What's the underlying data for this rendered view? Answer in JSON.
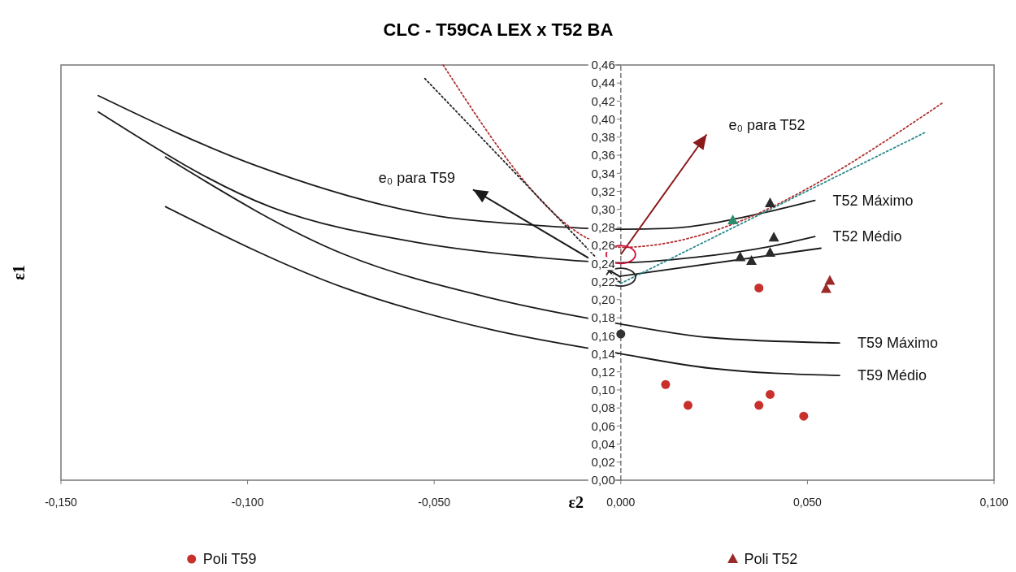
{
  "chart_data": {
    "type": "line",
    "title": "CLC -  T59CA LEX x T52 BA",
    "xlabel": "ε2",
    "ylabel": "ε1",
    "xlim": [
      -0.15,
      0.1
    ],
    "ylim": [
      0,
      0.46
    ],
    "xticks": [
      {
        "value": -0.15,
        "label": "-0,150"
      },
      {
        "value": -0.1,
        "label": "-0,100"
      },
      {
        "value": -0.05,
        "label": "-0,050"
      },
      {
        "value": 0,
        "label": "0,000"
      },
      {
        "value": 0.05,
        "label": "0,050"
      },
      {
        "value": 0.1,
        "label": "0,100"
      }
    ],
    "yticks": [
      {
        "value": 0,
        "label": "0,00"
      },
      {
        "value": 0.02,
        "label": "0,02"
      },
      {
        "value": 0.04,
        "label": "0,04"
      },
      {
        "value": 0.06,
        "label": "0,06"
      },
      {
        "value": 0.08,
        "label": "0,08"
      },
      {
        "value": 0.1,
        "label": "0,10"
      },
      {
        "value": 0.12,
        "label": "0,12"
      },
      {
        "value": 0.14,
        "label": "0,14"
      },
      {
        "value": 0.16,
        "label": "0,16"
      },
      {
        "value": 0.18,
        "label": "0,18"
      },
      {
        "value": 0.2,
        "label": "0,20"
      },
      {
        "value": 0.22,
        "label": "0,22"
      },
      {
        "value": 0.24,
        "label": "0,24"
      },
      {
        "value": 0.26,
        "label": "0,26"
      },
      {
        "value": 0.28,
        "label": "0,28"
      },
      {
        "value": 0.3,
        "label": "0,30"
      },
      {
        "value": 0.32,
        "label": "0,32"
      },
      {
        "value": 0.34,
        "label": "0,34"
      },
      {
        "value": 0.36,
        "label": "0,36"
      },
      {
        "value": 0.38,
        "label": "0,38"
      },
      {
        "value": 0.4,
        "label": "0,40"
      },
      {
        "value": 0.42,
        "label": "0,42"
      },
      {
        "value": 0.44,
        "label": "0,44"
      },
      {
        "value": 0.46,
        "label": "0,46"
      }
    ],
    "legend": "bottom",
    "annotations": [
      "e₀ para T52",
      "e₀ para T59"
    ],
    "series": [
      {
        "name": "T52 Máximo",
        "color": "#1a1a1a",
        "x": [
          -0.14,
          -0.098,
          -0.048,
          -0.025,
          0,
          0.0126,
          0.039,
          0.052
        ],
        "values": [
          0.426,
          0.349,
          0.292,
          0.283,
          0.278,
          0.279,
          0.297,
          0.31
        ]
      },
      {
        "name": "T52 Médio",
        "color": "#1a1a1a",
        "x": [
          -0.14,
          -0.094,
          -0.054,
          -0.025,
          0,
          0.02,
          0.04,
          0.052
        ],
        "values": [
          0.408,
          0.303,
          0.263,
          0.248,
          0.241,
          0.247,
          0.259,
          0.27
        ]
      },
      {
        "name": "T59 Máximo",
        "color": "#1a1a1a",
        "x": [
          -0.122,
          -0.074,
          -0.035,
          0,
          0.024,
          0.0586
        ],
        "values": [
          0.358,
          0.25,
          0.202,
          0.173,
          0.158,
          0.152
        ]
      },
      {
        "name": "T59 Médio",
        "color": "#1a1a1a",
        "x": [
          -0.122,
          -0.074,
          -0.035,
          0,
          0.024,
          0.0586
        ],
        "values": [
          0.303,
          0.213,
          0.167,
          0.14,
          0.124,
          0.116
        ]
      },
      {
        "color": "#1a1a1a",
        "x": [
          0,
          0.0536
        ],
        "values": [
          0.226,
          0.257
        ]
      },
      {
        "line_style": "dotted",
        "color": "#b03030",
        "x": [
          -0.0476,
          0,
          0.0862
        ],
        "values": [
          0.46,
          0.258,
          0.418
        ]
      },
      {
        "line_style": "dotted",
        "color": "#222222",
        "x": [
          -0.0525,
          0
        ],
        "values": [
          0.445,
          0.218
        ]
      },
      {
        "line_style": "dotted",
        "color": "#2a8a8a",
        "x": [
          0,
          0.0814
        ],
        "values": [
          0.218,
          0.385
        ]
      },
      {
        "color": "#8b1a1a",
        "x": [
          0,
          0.023
        ],
        "values": [
          0.25,
          0.383
        ]
      },
      {
        "color": "#1a1a1a",
        "x": [
          0,
          -0.0396
        ],
        "values": [
          0.225,
          0.322
        ]
      },
      {
        "name": "Poli T59",
        "type": "scatter",
        "marker": "circle",
        "color": "#c8302c",
        "x": [
          0.012,
          0.018,
          0.037,
          0.04,
          0.049,
          0.037
        ],
        "values": [
          0.106,
          0.083,
          0.083,
          0.095,
          0.071,
          0.213
        ]
      },
      {
        "type": "scatter",
        "marker": "circle",
        "color": "#333333",
        "x": [
          0
        ],
        "values": [
          0.162
        ]
      },
      {
        "name": "Poli T52",
        "type": "scatter",
        "marker": "triangle",
        "color": "#9b2a2a",
        "x": [
          0.055,
          0.056
        ],
        "values": [
          0.212,
          0.221
        ]
      },
      {
        "type": "scatter",
        "marker": "triangle",
        "color": "#2b2b2b",
        "x": [
          0.032,
          0.035,
          0.04,
          0.041,
          0.04
        ],
        "values": [
          0.247,
          0.243,
          0.252,
          0.269,
          0.307
        ]
      },
      {
        "type": "scatter",
        "marker": "triangle",
        "color": "#2e8b6e",
        "x": [
          0.03
        ],
        "values": [
          0.288
        ]
      }
    ]
  }
}
